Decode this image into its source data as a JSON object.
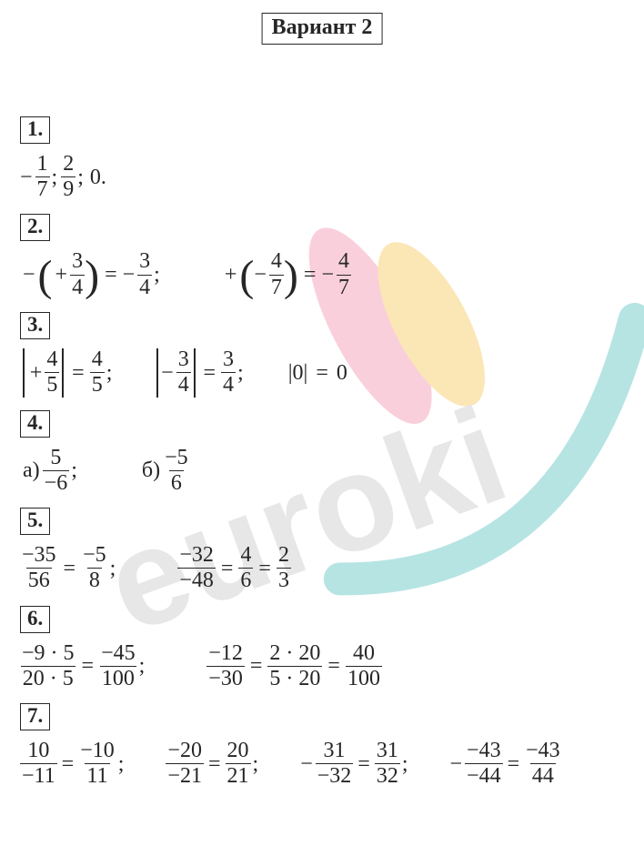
{
  "variant_title": "Вариант 2",
  "watermark_text": "euroki",
  "colors": {
    "text": "#262626",
    "bg": "#ffffff",
    "wm_pink": "#facfdc",
    "wm_yellow": "#fbe6b5",
    "wm_teal": "#b6e4e3",
    "wm_text": "#e7e7e7"
  },
  "problems": [
    {
      "num": "1.",
      "items": [
        {
          "type": "frac",
          "sign": "−",
          "n": "1",
          "d": "7"
        },
        {
          "type": "sep",
          "v": ";"
        },
        {
          "type": "frac",
          "n": "2",
          "d": "9"
        },
        {
          "type": "sep",
          "v": ";"
        },
        {
          "type": "plain",
          "v": "0."
        }
      ]
    },
    {
      "num": "2.",
      "items": [
        {
          "type": "plain",
          "v": "−"
        },
        {
          "type": "paren_open"
        },
        {
          "type": "plain",
          "v": "+"
        },
        {
          "type": "frac",
          "n": "3",
          "d": "4"
        },
        {
          "type": "paren_close"
        },
        {
          "type": "op",
          "v": "="
        },
        {
          "type": "frac",
          "sign": "−",
          "n": "3",
          "d": "4"
        },
        {
          "type": "sep",
          "v": ";"
        },
        {
          "type": "gap",
          "w": "l"
        },
        {
          "type": "plain",
          "v": "+"
        },
        {
          "type": "paren_open"
        },
        {
          "type": "frac",
          "sign": "−",
          "n": "4",
          "d": "7"
        },
        {
          "type": "paren_close"
        },
        {
          "type": "op",
          "v": "="
        },
        {
          "type": "frac",
          "sign": "−",
          "n": "4",
          "d": "7"
        }
      ]
    },
    {
      "num": "3.",
      "items": [
        {
          "type": "abs_open"
        },
        {
          "type": "plain",
          "v": "+"
        },
        {
          "type": "frac",
          "n": "4",
          "d": "5"
        },
        {
          "type": "abs_close"
        },
        {
          "type": "op",
          "v": "="
        },
        {
          "type": "frac",
          "n": "4",
          "d": "5"
        },
        {
          "type": "sep",
          "v": ";"
        },
        {
          "type": "gap",
          "w": "m"
        },
        {
          "type": "abs_open"
        },
        {
          "type": "frac",
          "sign": "−",
          "n": "3",
          "d": "4"
        },
        {
          "type": "abs_close"
        },
        {
          "type": "op",
          "v": "="
        },
        {
          "type": "frac",
          "n": "3",
          "d": "4"
        },
        {
          "type": "sep",
          "v": ";"
        },
        {
          "type": "gap",
          "w": "m"
        },
        {
          "type": "plain",
          "v": "|0|"
        },
        {
          "type": "op",
          "v": "="
        },
        {
          "type": "plain",
          "v": "0"
        }
      ]
    },
    {
      "num": "4.",
      "items": [
        {
          "type": "plain",
          "v": "а)"
        },
        {
          "type": "frac",
          "n": "5",
          "d": "−6"
        },
        {
          "type": "sep",
          "v": ";"
        },
        {
          "type": "gap",
          "w": "l"
        },
        {
          "type": "plain",
          "v": "б)"
        },
        {
          "type": "frac",
          "n": "−5",
          "d": "6"
        }
      ]
    },
    {
      "num": "5.",
      "items": [
        {
          "type": "frac",
          "n": "−35",
          "d": "56"
        },
        {
          "type": "op",
          "v": "="
        },
        {
          "type": "frac",
          "n": "−5",
          "d": "8"
        },
        {
          "type": "sep",
          "v": ";"
        },
        {
          "type": "gap",
          "w": "l"
        },
        {
          "type": "frac",
          "n": "−32",
          "d": "−48"
        },
        {
          "type": "op",
          "v": "="
        },
        {
          "type": "frac",
          "n": "4",
          "d": "6"
        },
        {
          "type": "op",
          "v": "="
        },
        {
          "type": "frac",
          "n": "2",
          "d": "3"
        }
      ]
    },
    {
      "num": "6.",
      "items": [
        {
          "type": "frac",
          "n": "−9 · 5",
          "d": "20 · 5"
        },
        {
          "type": "op",
          "v": "="
        },
        {
          "type": "frac",
          "n": "−45",
          "d": "100"
        },
        {
          "type": "sep",
          "v": ";"
        },
        {
          "type": "gap",
          "w": "l"
        },
        {
          "type": "frac",
          "n": "−12",
          "d": "−30"
        },
        {
          "type": "op",
          "v": "="
        },
        {
          "type": "frac",
          "n": "2 · 20",
          "d": "5 · 20"
        },
        {
          "type": "op",
          "v": "="
        },
        {
          "type": "frac",
          "n": "40",
          "d": "100"
        }
      ]
    },
    {
      "num": "7.",
      "items": [
        {
          "type": "frac",
          "n": "10",
          "d": "−11"
        },
        {
          "type": "op",
          "v": "="
        },
        {
          "type": "frac",
          "n": "−10",
          "d": "11"
        },
        {
          "type": "sep",
          "v": ";"
        },
        {
          "type": "gap",
          "w": "m"
        },
        {
          "type": "frac",
          "n": "−20",
          "d": "−21"
        },
        {
          "type": "op",
          "v": "="
        },
        {
          "type": "frac",
          "n": "20",
          "d": "21"
        },
        {
          "type": "sep",
          "v": ";"
        },
        {
          "type": "gap",
          "w": "m"
        },
        {
          "type": "frac",
          "sign": "−",
          "n": "31",
          "d": "−32"
        },
        {
          "type": "op",
          "v": "="
        },
        {
          "type": "frac",
          "n": "31",
          "d": "32"
        },
        {
          "type": "sep",
          "v": ";"
        },
        {
          "type": "gap",
          "w": "m"
        },
        {
          "type": "frac",
          "sign": "−",
          "n": "−43",
          "d": "−44"
        },
        {
          "type": "op",
          "v": "="
        },
        {
          "type": "frac",
          "n": "−43",
          "d": "44"
        }
      ]
    }
  ]
}
